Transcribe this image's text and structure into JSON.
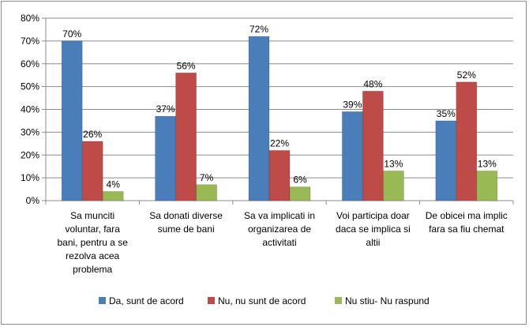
{
  "chart_data": {
    "type": "bar",
    "title": "",
    "xlabel": "",
    "ylabel": "",
    "ylim": [
      0,
      80
    ],
    "y_ticks": [
      "0%",
      "10%",
      "20%",
      "30%",
      "40%",
      "50%",
      "60%",
      "70%",
      "80%"
    ],
    "grid": true,
    "legend_position": "bottom",
    "categories": [
      [
        "Sa munciti",
        "voluntar, fara",
        "bani, pentru  a se",
        "rezolva acea",
        "problema"
      ],
      [
        "Sa donati diverse",
        "sume de bani"
      ],
      [
        "Sa va implicati in",
        "organizarea de",
        "activitati"
      ],
      [
        "Voi participa doar",
        "daca se implica si",
        "altii"
      ],
      [
        "De obicei ma implic",
        "fara sa fiu chemat"
      ]
    ],
    "series": [
      {
        "name": "Da, sunt de acord",
        "color": "#4a7ebb",
        "values": [
          70,
          37,
          72,
          39,
          35
        ],
        "labels": [
          "70%",
          "37%",
          "72%",
          "39%",
          "35%"
        ]
      },
      {
        "name": "Nu, nu sunt de acord",
        "color": "#be4b48",
        "values": [
          26,
          56,
          22,
          48,
          52
        ],
        "labels": [
          "26%",
          "56%",
          "22%",
          "48%",
          "52%"
        ]
      },
      {
        "name": "Nu stiu- Nu raspund",
        "color": "#98b954",
        "values": [
          4,
          7,
          6,
          13,
          13
        ],
        "labels": [
          "4%",
          "7%",
          "6%",
          "13%",
          "13%"
        ]
      }
    ]
  }
}
